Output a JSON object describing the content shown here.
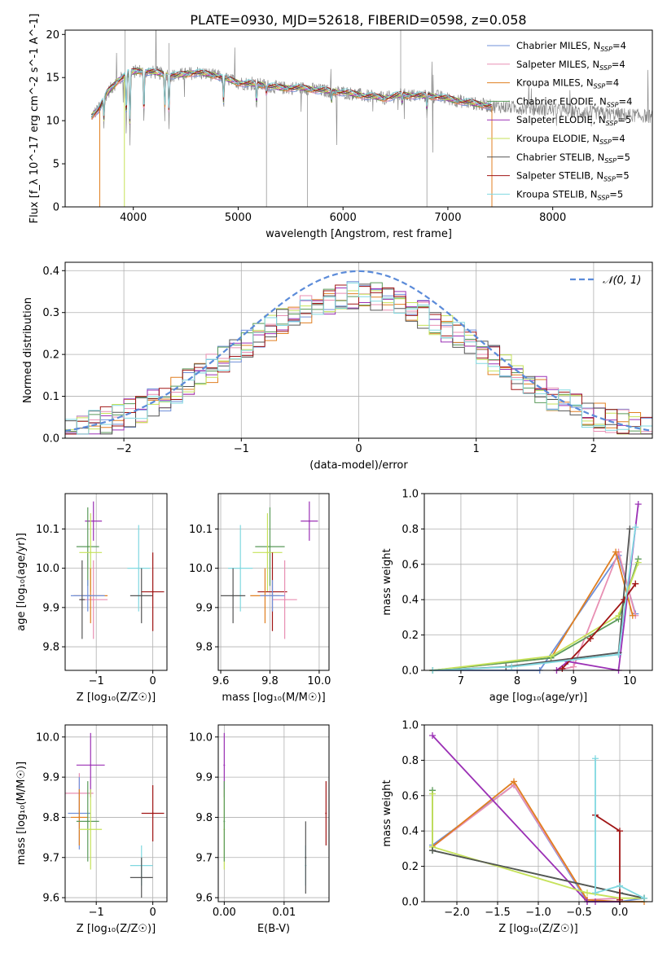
{
  "title": "PLATE=0930, MJD=52618, FIBERID=0598, z=0.058",
  "colors": {
    "chabrier_miles": "#6f8fd9",
    "salpeter_miles": "#e88fb3",
    "kroupa_miles": "#e07f20",
    "chabrier_elodie": "#5a9a5a",
    "salpeter_elodie": "#9b30b5",
    "kroupa_elodie": "#c6e25a",
    "chabrier_stelib": "#555555",
    "salpeter_stelib": "#a01515",
    "kroupa_stelib": "#80d8e0",
    "gauss": "#5b8bd9",
    "grid": "#b0b0b0"
  },
  "chart_data": [
    {
      "id": "spectrum",
      "type": "line",
      "xlabel": "wavelength [Angstrom, rest frame]",
      "ylabel": "Flux [f_λ 10^-17 erg cm^-2 s^-1 A^-1]",
      "xlim": [
        3350,
        8950
      ],
      "ylim": [
        0,
        20.5
      ],
      "xticks": [
        "4000",
        "5000",
        "6000",
        "7000",
        "8000"
      ],
      "yticks": [
        "0",
        "5",
        "10",
        "15",
        "20"
      ],
      "legend_position": "top-right",
      "legend": [
        {
          "text": "Chabrier MILES, N",
          "sub": "SSP",
          "suffix": "=4",
          "color_key": "chabrier_miles"
        },
        {
          "text": "Salpeter MILES, N",
          "sub": "SSP",
          "suffix": "=4",
          "color_key": "salpeter_miles"
        },
        {
          "text": "Kroupa MILES, N",
          "sub": "SSP",
          "suffix": "=4",
          "color_key": "kroupa_miles"
        },
        {
          "text": "Chabrier ELODIE, N",
          "sub": "SSP",
          "suffix": "=4",
          "color_key": "chabrier_elodie"
        },
        {
          "text": "Salpeter ELODIE, N",
          "sub": "SSP",
          "suffix": "=5",
          "color_key": "salpeter_elodie"
        },
        {
          "text": "Kroupa ELODIE, N",
          "sub": "SSP",
          "suffix": "=4",
          "color_key": "kroupa_elodie"
        },
        {
          "text": "Chabrier STELIB, N",
          "sub": "SSP",
          "suffix": "=5",
          "color_key": "chabrier_stelib"
        },
        {
          "text": "Salpeter STELIB, N",
          "sub": "SSP",
          "suffix": "=5",
          "color_key": "salpeter_stelib"
        },
        {
          "text": "Kroupa STELIB, N",
          "sub": "SSP",
          "suffix": "=5",
          "color_key": "kroupa_stelib"
        }
      ],
      "continuum": [
        [
          3600,
          10.5
        ],
        [
          3680,
          11.5
        ],
        [
          3750,
          13.2
        ],
        [
          3850,
          14.6
        ],
        [
          3950,
          15.5
        ],
        [
          4050,
          15.8
        ],
        [
          4200,
          15.6
        ],
        [
          4400,
          15.2
        ],
        [
          4600,
          15.6
        ],
        [
          4800,
          15.2
        ],
        [
          5000,
          14.4
        ],
        [
          5200,
          14.2
        ],
        [
          5400,
          13.8
        ],
        [
          5600,
          13.8
        ],
        [
          5800,
          13.5
        ],
        [
          6000,
          13.3
        ],
        [
          6200,
          12.9
        ],
        [
          6400,
          12.6
        ],
        [
          6550,
          13.0
        ],
        [
          6700,
          12.9
        ],
        [
          6900,
          12.8
        ],
        [
          7100,
          12.3
        ],
        [
          7300,
          11.9
        ],
        [
          7420,
          11.7
        ]
      ],
      "absorption": [
        [
          3720,
          9.5
        ],
        [
          3933,
          9.0
        ],
        [
          3968,
          7.5
        ],
        [
          4101,
          9.5
        ],
        [
          4300,
          10.5
        ],
        [
          4340,
          9.8
        ],
        [
          4861,
          11.5
        ],
        [
          5175,
          11.5
        ],
        [
          5270,
          13.0
        ],
        [
          5890,
          12.0
        ],
        [
          6563,
          12.0
        ],
        [
          6800,
          11.0
        ]
      ],
      "model_wavelength_range": [
        3600,
        7420
      ],
      "data_wavelength_range": [
        3600,
        8950
      ]
    },
    {
      "id": "residual-hist",
      "type": "line",
      "xlabel": "(data-model)/error",
      "ylabel": "Normed distribution",
      "xlim": [
        -2.5,
        2.5
      ],
      "ylim": [
        0,
        0.42
      ],
      "xticks": [
        "−2",
        "−1",
        "0",
        "1",
        "2"
      ],
      "yticks": [
        "0.0",
        "0.1",
        "0.2",
        "0.3",
        "0.4"
      ],
      "legend_position": "top-right",
      "legend": "𝒩(0, 1)",
      "bin_width": 0.1,
      "series_count": 9
    },
    {
      "id": "age-vs-Z",
      "type": "scatter",
      "xlabel": "Z [log₁₀(Z/Z☉)]",
      "ylabel": "age  [log₁₀(age/yr)]",
      "xlim": [
        -1.55,
        0.25
      ],
      "ylim": [
        9.74,
        10.19
      ],
      "xticks": [
        "−1",
        "0"
      ],
      "yticks": [
        "9.8",
        "9.9",
        "10.0",
        "10.1"
      ],
      "points": [
        {
          "color_key": "salpeter_elodie",
          "x": -1.05,
          "y": 10.12,
          "xerr": 0.15,
          "yerr": 0.05
        },
        {
          "color_key": "chabrier_elodie",
          "x": -1.15,
          "y": 10.055,
          "xerr": 0.2,
          "yerr": 0.1
        },
        {
          "color_key": "kroupa_elodie",
          "x": -1.1,
          "y": 10.04,
          "xerr": 0.2,
          "yerr": 0.1
        },
        {
          "color_key": "salpeter_miles",
          "x": -1.05,
          "y": 9.92,
          "xerr": 0.25,
          "yerr": 0.1
        },
        {
          "color_key": "kroupa_miles",
          "x": -1.1,
          "y": 9.93,
          "xerr": 0.3,
          "yerr": 0.07
        },
        {
          "color_key": "chabrier_miles",
          "x": -1.15,
          "y": 9.93,
          "xerr": 0.3,
          "yerr": 0.04
        },
        {
          "color_key": "kroupa_stelib",
          "x": -0.25,
          "y": 10.0,
          "xerr": 0.2,
          "yerr": 0.11
        },
        {
          "color_key": "chabrier_stelib",
          "x": -0.2,
          "y": 9.93,
          "xerr": 0.2,
          "yerr": 0.07
        },
        {
          "color_key": "salpeter_stelib",
          "x": 0.0,
          "y": 9.94,
          "xerr": 0.2,
          "yerr": 0.1
        },
        {
          "color_key": "chabrier_stelib",
          "x": -1.25,
          "y": 9.92,
          "xerr": 0.05,
          "yerr": 0.1
        }
      ]
    },
    {
      "id": "age-vs-mass",
      "type": "scatter",
      "xlabel": "mass [log₁₀(M/M☉)]",
      "ylabel": "",
      "xlim": [
        9.59,
        10.04
      ],
      "ylim": [
        9.74,
        10.19
      ],
      "xticks": [
        "9.6",
        "9.8",
        "10.0"
      ],
      "yticks": [
        "9.8",
        "9.9",
        "10.0",
        "10.1"
      ],
      "points": [
        {
          "color_key": "salpeter_elodie",
          "x": 9.96,
          "y": 10.12,
          "xerr": 0.035,
          "yerr": 0.05
        },
        {
          "color_key": "chabrier_elodie",
          "x": 9.8,
          "y": 10.055,
          "xerr": 0.06,
          "yerr": 0.1
        },
        {
          "color_key": "kroupa_elodie",
          "x": 9.79,
          "y": 10.04,
          "xerr": 0.06,
          "yerr": 0.1
        },
        {
          "color_key": "kroupa_stelib",
          "x": 9.68,
          "y": 10.0,
          "xerr": 0.05,
          "yerr": 0.11
        },
        {
          "color_key": "chabrier_stelib",
          "x": 9.65,
          "y": 9.93,
          "xerr": 0.05,
          "yerr": 0.07
        },
        {
          "color_key": "salpeter_stelib",
          "x": 9.81,
          "y": 9.94,
          "xerr": 0.06,
          "yerr": 0.1
        },
        {
          "color_key": "salpeter_miles",
          "x": 9.86,
          "y": 9.92,
          "xerr": 0.05,
          "yerr": 0.1
        },
        {
          "color_key": "kroupa_miles",
          "x": 9.78,
          "y": 9.93,
          "xerr": 0.06,
          "yerr": 0.07
        },
        {
          "color_key": "chabrier_miles",
          "x": 9.81,
          "y": 9.93,
          "xerr": 0.05,
          "yerr": 0.04
        }
      ]
    },
    {
      "id": "massweight-vs-age",
      "type": "line",
      "xlabel": "age  [log₁₀(age/yr)]",
      "ylabel": "mass weight",
      "xlim": [
        6.35,
        10.4
      ],
      "ylim": [
        0,
        1.0
      ],
      "xticks": [
        "7",
        "8",
        "9",
        "10"
      ],
      "yticks": [
        "0.0",
        "0.2",
        "0.4",
        "0.6",
        "0.8",
        "1.0"
      ],
      "series": [
        {
          "color_key": "chabrier_miles",
          "x": [
            6.5,
            8.4,
            9.8,
            10.1
          ],
          "y": [
            0.0,
            0.0,
            0.65,
            0.32
          ]
        },
        {
          "color_key": "salpeter_miles",
          "x": [
            8.7,
            9.0,
            9.8,
            10.1
          ],
          "y": [
            0.0,
            0.02,
            0.67,
            0.31
          ]
        },
        {
          "color_key": "kroupa_miles",
          "x": [
            6.5,
            8.6,
            9.75,
            10.05
          ],
          "y": [
            0.0,
            0.07,
            0.67,
            0.31
          ]
        },
        {
          "color_key": "chabrier_elodie",
          "x": [
            6.5,
            8.6,
            9.8,
            10.15
          ],
          "y": [
            0.0,
            0.07,
            0.29,
            0.63
          ]
        },
        {
          "color_key": "salpeter_elodie",
          "x": [
            8.7,
            8.9,
            9.8,
            10.15
          ],
          "y": [
            0.0,
            0.05,
            0.0,
            0.94
          ]
        },
        {
          "color_key": "kroupa_elodie",
          "x": [
            6.5,
            8.6,
            9.8,
            10.15
          ],
          "y": [
            0.0,
            0.08,
            0.31,
            0.61
          ]
        },
        {
          "color_key": "chabrier_stelib",
          "x": [
            6.5,
            7.8,
            9.8,
            10.0
          ],
          "y": [
            0.0,
            0.02,
            0.1,
            0.8
          ]
        },
        {
          "color_key": "salpeter_stelib",
          "x": [
            8.8,
            9.3,
            9.9,
            10.1
          ],
          "y": [
            0.01,
            0.18,
            0.4,
            0.49
          ]
        },
        {
          "color_key": "kroupa_stelib",
          "x": [
            6.5,
            7.9,
            9.8,
            10.1
          ],
          "y": [
            0.0,
            0.02,
            0.09,
            0.81
          ]
        }
      ]
    },
    {
      "id": "mass-vs-Z",
      "type": "scatter",
      "xlabel": "Z [log₁₀(Z/Z☉)]",
      "ylabel": "mass [log₁₀(M/M☉)]",
      "xlim": [
        -1.55,
        0.25
      ],
      "ylim": [
        9.59,
        10.03
      ],
      "xticks": [
        "−1",
        "0"
      ],
      "yticks": [
        "9.6",
        "9.7",
        "9.8",
        "9.9",
        "10.0"
      ],
      "points": [
        {
          "color_key": "salpeter_elodie",
          "x": -1.1,
          "y": 9.93,
          "xerr": 0.25,
          "yerr": 0.08
        },
        {
          "color_key": "salpeter_miles",
          "x": -1.3,
          "y": 9.86,
          "xerr": 0.25,
          "yerr": 0.05
        },
        {
          "color_key": "salpeter_stelib",
          "x": 0.0,
          "y": 9.81,
          "xerr": 0.2,
          "yerr": 0.07
        },
        {
          "color_key": "chabrier_miles",
          "x": -1.3,
          "y": 9.81,
          "xerr": 0.2,
          "yerr": 0.09
        },
        {
          "color_key": "kroupa_miles",
          "x": -1.3,
          "y": 9.8,
          "xerr": 0.15,
          "yerr": 0.07
        },
        {
          "color_key": "chabrier_elodie",
          "x": -1.15,
          "y": 9.79,
          "xerr": 0.2,
          "yerr": 0.1
        },
        {
          "color_key": "kroupa_elodie",
          "x": -1.1,
          "y": 9.77,
          "xerr": 0.2,
          "yerr": 0.1
        },
        {
          "color_key": "kroupa_stelib",
          "x": -0.2,
          "y": 9.68,
          "xerr": 0.2,
          "yerr": 0.05
        },
        {
          "color_key": "chabrier_stelib",
          "x": -0.2,
          "y": 9.65,
          "xerr": 0.2,
          "yerr": 0.05
        }
      ]
    },
    {
      "id": "mass-vs-ebv",
      "type": "scatter",
      "xlabel": "E(B-V)",
      "ylabel": "",
      "xlim": [
        -0.001,
        0.0175
      ],
      "ylim": [
        9.59,
        10.03
      ],
      "xticks": [
        "0.00",
        "0.01"
      ],
      "yticks": [
        "9.6",
        "9.7",
        "9.8",
        "9.9",
        "10.0"
      ],
      "points": [
        {
          "color_key": "salpeter_elodie",
          "x": 0.0,
          "y": 9.93,
          "yerr": 0.08
        },
        {
          "color_key": "kroupa_elodie",
          "x": 0.0,
          "y": 9.77,
          "yerr": 0.1
        },
        {
          "color_key": "chabrier_elodie",
          "x": 0.0,
          "y": 9.79,
          "yerr": 0.1
        },
        {
          "color_key": "kroupa_stelib",
          "x": 0.0136,
          "y": 9.68,
          "yerr": 0.05
        },
        {
          "color_key": "chabrier_stelib",
          "x": 0.0136,
          "y": 9.7,
          "yerr": 0.09
        },
        {
          "color_key": "salpeter_stelib",
          "x": 0.017,
          "y": 9.81,
          "yerr": 0.08
        }
      ]
    },
    {
      "id": "massweight-vs-Z",
      "type": "line",
      "xlabel": "Z [log₁₀(Z/Z☉)]",
      "ylabel": "mass weight",
      "xlim": [
        -2.4,
        0.4
      ],
      "ylim": [
        0,
        1.0
      ],
      "xticks": [
        "−2.0",
        "−1.5",
        "−1.0",
        "−0.5",
        "0.0"
      ],
      "yticks": [
        "0.0",
        "0.2",
        "0.4",
        "0.6",
        "0.8",
        "1.0"
      ],
      "series": [
        {
          "color_key": "chabrier_miles",
          "x": [
            -2.3,
            -1.3,
            -0.4,
            0.0,
            0.3
          ],
          "y": [
            0.32,
            0.66,
            0.0,
            0.0,
            0.02
          ]
        },
        {
          "color_key": "salpeter_miles",
          "x": [
            -2.3,
            -1.3,
            -0.4,
            0.0
          ],
          "y": [
            0.31,
            0.66,
            0.01,
            0.02
          ]
        },
        {
          "color_key": "kroupa_miles",
          "x": [
            -2.3,
            -1.3,
            -0.4,
            0.0,
            0.3
          ],
          "y": [
            0.31,
            0.68,
            0.01,
            0.0,
            0.0
          ]
        },
        {
          "color_key": "chabrier_elodie",
          "x": [
            -2.3,
            -2.3,
            0.0,
            0.3
          ],
          "y": [
            0.63,
            0.29,
            0.05,
            0.02
          ]
        },
        {
          "color_key": "salpeter_elodie",
          "x": [
            -2.3,
            -0.4,
            -0.3,
            0.0
          ],
          "y": [
            0.94,
            0.0,
            0.0,
            0.0
          ]
        },
        {
          "color_key": "kroupa_elodie",
          "x": [
            -2.3,
            -2.3,
            -0.4,
            0.0,
            0.3
          ],
          "y": [
            0.61,
            0.31,
            0.05,
            0.02,
            0.02
          ]
        },
        {
          "color_key": "chabrier_stelib",
          "x": [
            -2.3,
            0.0,
            0.3
          ],
          "y": [
            0.29,
            0.05,
            0.02
          ]
        },
        {
          "color_key": "salpeter_stelib",
          "x": [
            -0.3,
            0.0,
            0.0
          ],
          "y": [
            0.49,
            0.4,
            0.01
          ]
        },
        {
          "color_key": "kroupa_stelib",
          "x": [
            -0.3,
            -0.3,
            0.0,
            0.3
          ],
          "y": [
            0.81,
            0.05,
            0.09,
            0.02
          ]
        }
      ]
    }
  ]
}
